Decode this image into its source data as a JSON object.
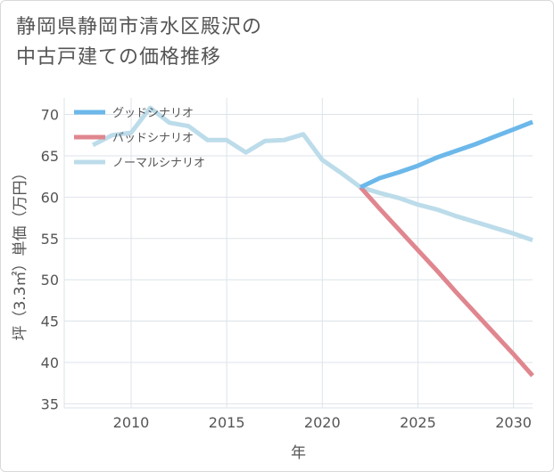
{
  "title_line1": "静岡県静岡市清水区殿沢の",
  "title_line2": "中古戸建ての価格推移",
  "chart_data": {
    "type": "line",
    "xlabel": "年",
    "ylabel": "坪（3.3㎡）単価（万円）",
    "xlim": [
      2006.5,
      2031
    ],
    "ylim": [
      34.5,
      72
    ],
    "xticks": [
      2010,
      2015,
      2020,
      2025,
      2030
    ],
    "yticks": [
      35,
      40,
      45,
      50,
      55,
      60,
      65,
      70
    ],
    "grid": true,
    "legend_position": "top-left",
    "series": [
      {
        "name": "グッドシナリオ",
        "color": "#6cb8ea",
        "x": [
          2022,
          2023,
          2024,
          2025,
          2026,
          2027,
          2028,
          2029,
          2030,
          2031
        ],
        "y": [
          61.2,
          62.3,
          63.0,
          63.8,
          64.8,
          65.6,
          66.4,
          67.3,
          68.2,
          69.1
        ]
      },
      {
        "name": "バッドシナリオ",
        "color": "#e0868f",
        "x": [
          2022,
          2023,
          2024,
          2025,
          2026,
          2027,
          2028,
          2029,
          2030,
          2031
        ],
        "y": [
          61.2,
          58.6,
          56.1,
          53.6,
          51.1,
          48.5,
          46.0,
          43.5,
          41.0,
          38.4
        ]
      },
      {
        "name": "ノーマルシナリオ",
        "color": "#bcdcea",
        "x": [
          2008,
          2009,
          2010,
          2011,
          2012,
          2013,
          2014,
          2015,
          2016,
          2017,
          2018,
          2019,
          2020,
          2021,
          2022,
          2023,
          2024,
          2025,
          2026,
          2027,
          2028,
          2029,
          2030,
          2031
        ],
        "y": [
          66.3,
          67.5,
          67.8,
          70.8,
          69.0,
          68.6,
          66.9,
          66.9,
          65.4,
          66.8,
          66.9,
          67.6,
          64.5,
          62.9,
          61.2,
          60.5,
          59.9,
          59.1,
          58.5,
          57.7,
          57.0,
          56.3,
          55.6,
          54.8
        ]
      }
    ]
  }
}
